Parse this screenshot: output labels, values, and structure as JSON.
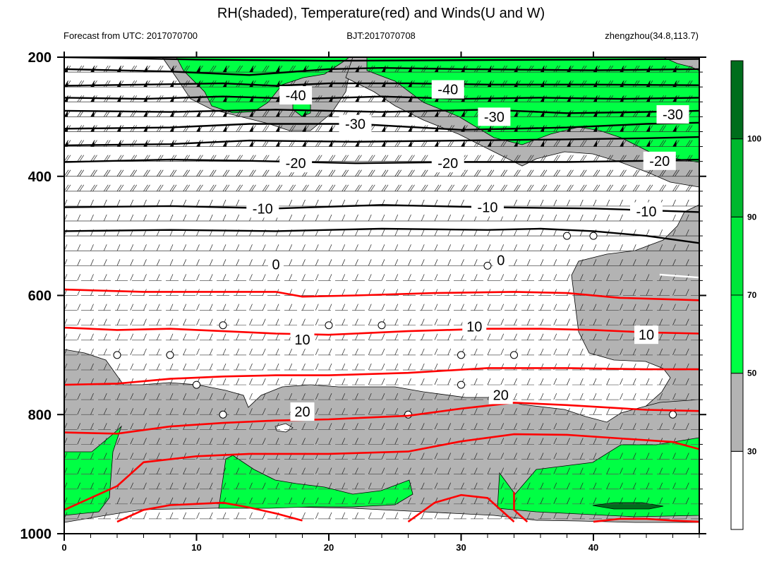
{
  "chart_data": {
    "type": "heatmap",
    "title": "RH(shaded), Temperature(red) and Winds(U and W)",
    "subtitle_left": "Forecast from UTC: 2017070700",
    "subtitle_center": "BJT:2017070708",
    "subtitle_right": "zhengzhou(34.8,113.7)",
    "x_range": [
      0,
      48
    ],
    "x_ticks": [
      0,
      10,
      20,
      30,
      40
    ],
    "y_range": [
      200,
      1000
    ],
    "y_reversed": true,
    "y_ticks": [
      200,
      400,
      600,
      800,
      1000
    ],
    "colorbar": {
      "levels": [
        30,
        50,
        70,
        90,
        100
      ],
      "colors": [
        "#ffffff",
        "#b3b3b3",
        "#00ff44",
        "#00e63a",
        "#00b82e",
        "#006d1c"
      ],
      "labels": [
        "30",
        "50",
        "70",
        "90",
        "100"
      ]
    },
    "rh_colors": {
      "gray": "#b3b3b3",
      "green": "#00ff44",
      "darkgreen": "#006d1c"
    },
    "temperature_color": "#ff0000",
    "isotherm_labels": [
      {
        "text": "-40",
        "x": 17.5,
        "p": 264
      },
      {
        "text": "-40",
        "x": 29.0,
        "p": 254
      },
      {
        "text": "-30",
        "x": 22.0,
        "p": 312
      },
      {
        "text": "-30",
        "x": 32.5,
        "p": 300
      },
      {
        "text": "-30",
        "x": 46.0,
        "p": 296
      },
      {
        "text": "-20",
        "x": 17.5,
        "p": 378
      },
      {
        "text": "-20",
        "x": 29.0,
        "p": 378
      },
      {
        "text": "-20",
        "x": 45.0,
        "p": 374
      },
      {
        "text": "-10",
        "x": 15.0,
        "p": 454
      },
      {
        "text": "-10",
        "x": 32.0,
        "p": 452
      },
      {
        "text": "-10",
        "x": 44.0,
        "p": 459
      },
      {
        "text": "0",
        "x": 16.0,
        "p": 548
      },
      {
        "text": "0",
        "x": 33.0,
        "p": 541
      },
      {
        "text": "10",
        "x": 18.0,
        "p": 674
      },
      {
        "text": "10",
        "x": 31.0,
        "p": 652
      },
      {
        "text": "10",
        "x": 44.0,
        "p": 666
      },
      {
        "text": "20",
        "x": 18.0,
        "p": 795
      },
      {
        "text": "20",
        "x": 33.0,
        "p": 767
      }
    ]
  }
}
